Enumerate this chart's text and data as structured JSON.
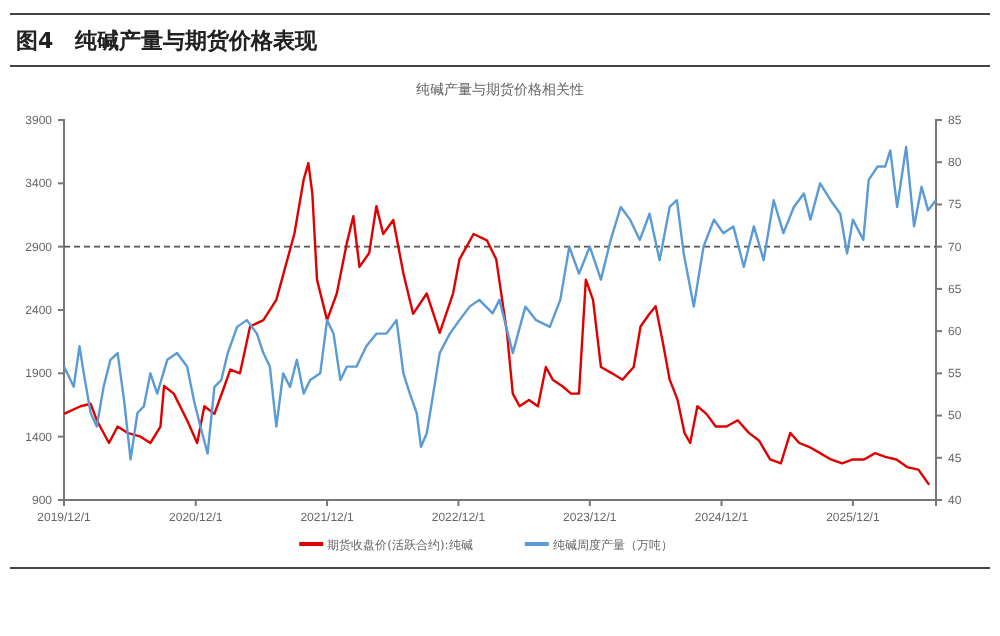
{
  "chart_data": {
    "type": "line",
    "title": "图4　纯碱产量与期货价格表现",
    "subtitle": "纯碱产量与期货价格相关性",
    "xlim": [
      "2019-12-01",
      "2026-07-20"
    ],
    "xticks": [
      {
        "value": "2019-12-01",
        "label": "2019/12/1"
      },
      {
        "value": "2020-12-01",
        "label": "2020/12/1"
      },
      {
        "value": "2021-12-01",
        "label": "2021/12/1"
      },
      {
        "value": "2022-12-01",
        "label": "2022/12/1"
      },
      {
        "value": "2023-12-01",
        "label": "2023/12/1"
      },
      {
        "value": "2024-12-01",
        "label": "2024/12/1"
      },
      {
        "value": "2025-12-01",
        "label": "2025/12/1"
      }
    ],
    "ylim": [
      900,
      3900
    ],
    "yticks": [
      900,
      1400,
      1900,
      2400,
      2900,
      3400,
      3900
    ],
    "y2lim": [
      40,
      85
    ],
    "y2ticks": [
      40,
      45,
      50,
      55,
      60,
      65,
      70,
      75,
      80,
      85
    ],
    "grid": false,
    "legend": "bottom",
    "marker": "none",
    "line_style": "solid",
    "ref_lines": [
      {
        "axis": "y",
        "value": 2900,
        "color": "#555555",
        "line_style": "dashed"
      }
    ],
    "series": [
      {
        "name": "期货收盘价(活跃合约):纯碱",
        "color": "#e00000",
        "x": [
          "2019-12-01",
          "2020-01-16",
          "2020-02-13",
          "2020-03-01",
          "2020-04-04",
          "2020-04-28",
          "2020-05-25",
          "2020-07-01",
          "2020-07-28",
          "2020-08-25",
          "2020-09-04",
          "2020-10-01",
          "2020-11-07",
          "2020-12-05",
          "2020-12-25",
          "2021-01-22",
          "2021-02-19",
          "2021-03-07",
          "2021-04-03",
          "2021-05-01",
          "2021-06-07",
          "2021-07-13",
          "2021-09-01",
          "2021-09-27",
          "2021-10-10",
          "2021-10-21",
          "2021-11-03",
          "2021-12-01",
          "2021-12-28",
          "2022-01-25",
          "2022-02-12",
          "2022-03-01",
          "2022-03-28",
          "2022-04-17",
          "2022-05-06",
          "2022-06-03",
          "2022-07-01",
          "2022-07-28",
          "2022-09-04",
          "2022-10-10",
          "2022-11-16",
          "2022-12-04",
          "2023-01-12",
          "2023-02-18",
          "2023-03-16",
          "2023-04-15",
          "2023-05-01",
          "2023-05-20",
          "2023-06-15",
          "2023-07-10",
          "2023-08-01",
          "2023-08-20",
          "2023-09-15",
          "2023-10-10",
          "2023-11-01",
          "2023-11-20",
          "2023-12-10",
          "2024-01-01",
          "2024-02-01",
          "2024-03-01",
          "2024-04-01",
          "2024-04-20",
          "2024-05-15",
          "2024-06-01",
          "2024-06-20",
          "2024-07-10",
          "2024-08-01",
          "2024-08-20",
          "2024-09-05",
          "2024-09-25",
          "2024-10-20",
          "2024-11-15",
          "2024-12-15",
          "2025-01-15",
          "2025-02-15",
          "2025-03-15",
          "2025-04-15",
          "2025-05-15",
          "2025-06-10",
          "2025-07-05",
          "2025-08-01",
          "2025-09-01",
          "2025-10-01",
          "2025-11-01",
          "2025-12-01",
          "2026-01-01",
          "2026-02-01",
          "2026-03-01",
          "2026-04-01",
          "2026-05-01",
          "2026-06-01",
          "2026-07-01"
        ],
        "values": [
          1580,
          1640,
          1660,
          1530,
          1350,
          1480,
          1430,
          1400,
          1350,
          1480,
          1800,
          1740,
          1530,
          1350,
          1640,
          1580,
          1800,
          1930,
          1900,
          2270,
          2320,
          2480,
          3000,
          3430,
          3560,
          3320,
          2640,
          2320,
          2530,
          2930,
          3140,
          2740,
          2850,
          3220,
          3000,
          3110,
          2690,
          2370,
          2530,
          2220,
          2530,
          2800,
          3000,
          2950,
          2800,
          2220,
          1740,
          1640,
          1690,
          1640,
          1950,
          1850,
          1800,
          1740,
          1740,
          2640,
          2480,
          1950,
          1900,
          1850,
          1950,
          2270,
          2370,
          2430,
          2160,
          1850,
          1690,
          1430,
          1350,
          1640,
          1580,
          1480,
          1480,
          1530,
          1430,
          1370,
          1220,
          1190,
          1430,
          1350,
          1320,
          1270,
          1220,
          1190,
          1220,
          1220,
          1270,
          1240,
          1220,
          1160,
          1140,
          1020
        ]
      },
      {
        "name": "纯碱周度产量（万吨）",
        "color": "#5b9bd5",
        "axis": "y2",
        "x": [
          "2019-12-01",
          "2019-12-28",
          "2020-01-13",
          "2020-01-25",
          "2020-02-13",
          "2020-03-01",
          "2020-03-20",
          "2020-04-08",
          "2020-04-28",
          "2020-05-16",
          "2020-06-03",
          "2020-06-22",
          "2020-07-10",
          "2020-07-28",
          "2020-08-16",
          "2020-09-13",
          "2020-10-10",
          "2020-11-07",
          "2020-11-26",
          "2020-12-14",
          "2021-01-03",
          "2021-01-22",
          "2021-02-10",
          "2021-02-28",
          "2021-03-26",
          "2021-04-22",
          "2021-05-20",
          "2021-06-07",
          "2021-06-25",
          "2021-07-13",
          "2021-08-01",
          "2021-08-20",
          "2021-09-08",
          "2021-09-27",
          "2021-10-15",
          "2021-11-12",
          "2021-12-01",
          "2021-12-19",
          "2022-01-07",
          "2022-01-25",
          "2022-02-21",
          "2022-03-20",
          "2022-04-17",
          "2022-05-15",
          "2022-06-12",
          "2022-07-01",
          "2022-07-19",
          "2022-08-07",
          "2022-08-19",
          "2022-09-04",
          "2022-09-22",
          "2022-10-10",
          "2022-11-07",
          "2022-12-04",
          "2023-01-01",
          "2023-01-28",
          "2023-03-06",
          "2023-03-25",
          "2023-05-01",
          "2023-06-05",
          "2023-07-05",
          "2023-08-12",
          "2023-09-10",
          "2023-10-05",
          "2023-11-01",
          "2023-12-01",
          "2024-01-01",
          "2024-01-28",
          "2024-02-25",
          "2024-03-22",
          "2024-04-18",
          "2024-05-15",
          "2024-06-12",
          "2024-07-10",
          "2024-07-30",
          "2024-08-18",
          "2024-09-15",
          "2024-10-12",
          "2024-11-10",
          "2024-12-06",
          "2025-01-03",
          "2025-02-01",
          "2025-03-01",
          "2025-03-28",
          "2025-04-25",
          "2025-05-22",
          "2025-06-20",
          "2025-07-18",
          "2025-08-05",
          "2025-09-01",
          "2025-09-30",
          "2025-10-27",
          "2025-11-15",
          "2025-12-01",
          "2025-12-30",
          "2026-01-14",
          "2026-02-08",
          "2026-03-01",
          "2026-03-15",
          "2026-04-03",
          "2026-04-28",
          "2026-05-20",
          "2026-06-10",
          "2026-06-28",
          "2026-07-20"
        ],
        "values": [
          55.8,
          53.4,
          58.2,
          55,
          50.3,
          48.7,
          53.4,
          56.6,
          57.4,
          51.8,
          44.8,
          50.3,
          51.1,
          55,
          52.6,
          56.6,
          57.4,
          55.8,
          51.8,
          48.7,
          45.5,
          53.4,
          54.2,
          57.4,
          60.5,
          61.3,
          59.7,
          57.4,
          55.8,
          48.7,
          55,
          53.4,
          56.6,
          52.6,
          54.2,
          55,
          61.3,
          59.7,
          54.2,
          55.8,
          55.8,
          58.2,
          59.7,
          59.7,
          61.3,
          55,
          52.6,
          50.3,
          46.3,
          47.9,
          52.6,
          57.4,
          59.7,
          61.3,
          62.9,
          63.7,
          62.1,
          63.7,
          57.4,
          62.9,
          61.3,
          60.5,
          63.7,
          70,
          66.8,
          70,
          66.1,
          70.8,
          74.7,
          73.2,
          70.8,
          73.9,
          68.4,
          74.7,
          75.5,
          69.2,
          62.9,
          70,
          73.2,
          71.6,
          72.4,
          67.6,
          72.4,
          68.4,
          75.5,
          71.6,
          74.7,
          76.3,
          73.2,
          77.5,
          75.5,
          73.9,
          69.2,
          73.2,
          70.8,
          77.9,
          79.5,
          79.5,
          81.4,
          74.7,
          81.8,
          72.4,
          77.1,
          74.3,
          75.5
        ]
      }
    ]
  }
}
